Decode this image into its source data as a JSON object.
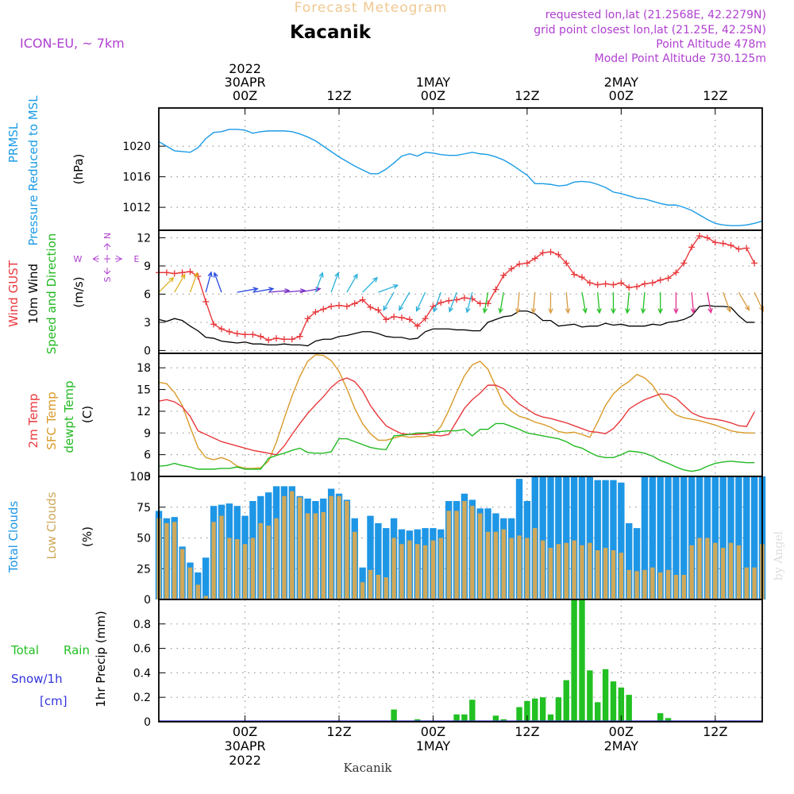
{
  "header": {
    "title": "Forecast Meteogram",
    "station": "Kacanik",
    "model": "ICON-EU, ~ 7km",
    "requested": "requested lon,lat (21.2568E, 42.2279N)",
    "gridpoint": "grid point closest lon,lat (21.25E, 42.25N)",
    "altitude": "Point Altitude 478m",
    "model_altitude": "Model Point Altitude 730.125m",
    "footer_station": "Kacanik",
    "credit": "by Angel"
  },
  "time_axis": {
    "top_labels": [
      {
        "hour": 0,
        "lines": [
          "2022",
          "30APR",
          "00Z"
        ]
      },
      {
        "hour": 12,
        "lines": [
          "12Z"
        ]
      },
      {
        "hour": 24,
        "lines": [
          "1MAY",
          "00Z"
        ]
      },
      {
        "hour": 36,
        "lines": [
          "12Z"
        ]
      },
      {
        "hour": 48,
        "lines": [
          "2MAY",
          "00Z"
        ]
      },
      {
        "hour": 60,
        "lines": [
          "12Z"
        ]
      }
    ],
    "bottom_labels": [
      {
        "hour": 0,
        "lines": [
          "00Z",
          "30APR",
          "2022"
        ]
      },
      {
        "hour": 12,
        "lines": [
          "12Z"
        ]
      },
      {
        "hour": 24,
        "lines": [
          "00Z",
          "1MAY"
        ]
      },
      {
        "hour": 36,
        "lines": [
          "12Z"
        ]
      },
      {
        "hour": 48,
        "lines": [
          "00Z",
          "2MAY"
        ]
      },
      {
        "hour": 60,
        "lines": [
          "12Z"
        ]
      }
    ],
    "range_hours": [
      -11,
      66
    ]
  },
  "panel_labels": {
    "pressure": [
      "PRMSL",
      "Pressure Reduced to MSL",
      "(hPa)"
    ],
    "wind": [
      "Wind GUST",
      "10m Wind",
      "Speed and Direction",
      "(m/s)"
    ],
    "compass": [
      "N",
      "E",
      "S",
      "W"
    ],
    "temp": [
      "2m Temp",
      "SFC Temp",
      "dewpt Temp",
      "(C)"
    ],
    "clouds": [
      "Total Clouds",
      "Low Clouds",
      "(%)"
    ],
    "precip": [
      "Total",
      "Rain",
      "Snow/1h",
      "[cm]",
      "1hr Precip (mm)"
    ]
  },
  "colors": {
    "pressure": "#1a9be6",
    "gust": "#e8383c",
    "wind": "#000000",
    "temp2m": "#e8383c",
    "sfc": "#d99a2a",
    "dewpt": "#22b922",
    "total_cloud": "#1e96e6",
    "low_cloud": "#cfa85a",
    "rain": "#22c022",
    "title": "#f0c890",
    "info": "#b040d0",
    "snow": "#3333dd"
  },
  "chart_data": [
    {
      "name": "pressure",
      "type": "line",
      "ylim": [
        1009,
        1025
      ],
      "yticks": [
        1012,
        1016,
        1020
      ],
      "x": [
        -11,
        -9,
        -7,
        -6,
        -5,
        -4,
        -3,
        -2,
        -1,
        0,
        1,
        2,
        3,
        4,
        5,
        6,
        7,
        8,
        9,
        10,
        11,
        12,
        13,
        14,
        15,
        16,
        17,
        18,
        19,
        20,
        21,
        22,
        23,
        24,
        25,
        26,
        27,
        28,
        29,
        30,
        31,
        32,
        33,
        34,
        35,
        36,
        37,
        38,
        39,
        40,
        41,
        42,
        43,
        44,
        45,
        46,
        47,
        48,
        49,
        50,
        51,
        52,
        53,
        54,
        55,
        56,
        57,
        58,
        59,
        60,
        61,
        62,
        63,
        64,
        65,
        66
      ],
      "values": [
        1020.6,
        1019.4,
        1019.2,
        1019.8,
        1021.0,
        1021.8,
        1021.9,
        1022.2,
        1022.2,
        1022.1,
        1021.7,
        1021.9,
        1022.0,
        1022.0,
        1022.0,
        1021.9,
        1021.6,
        1021.2,
        1020.7,
        1020.0,
        1019.3,
        1018.6,
        1018.0,
        1017.4,
        1016.9,
        1016.4,
        1016.4,
        1017.0,
        1017.8,
        1018.7,
        1019.0,
        1018.7,
        1019.2,
        1019.1,
        1018.9,
        1018.8,
        1018.8,
        1019.0,
        1019.2,
        1019.0,
        1018.9,
        1018.6,
        1018.2,
        1017.6,
        1016.9,
        1016.2,
        1015.1,
        1015.1,
        1015.0,
        1014.8,
        1014.9,
        1015.3,
        1015.4,
        1015.3,
        1015.0,
        1014.6,
        1014.0,
        1013.8,
        1013.5,
        1013.2,
        1013.1,
        1012.8,
        1012.5,
        1012.3,
        1012.3,
        1012.0,
        1011.6,
        1011.0,
        1010.4,
        1009.9,
        1009.7,
        1009.6,
        1009.6,
        1009.7,
        1009.9,
        1010.2
      ]
    },
    {
      "name": "wind",
      "type": "line",
      "ylim": [
        -0.3,
        12.8
      ],
      "yticks": [
        0,
        3,
        6,
        9,
        12
      ],
      "x": [
        -11,
        -10,
        -9,
        -8,
        -7,
        -6,
        -5,
        -4,
        -3,
        -2,
        -1,
        0,
        1,
        2,
        3,
        4,
        5,
        6,
        7,
        8,
        9,
        10,
        11,
        12,
        13,
        14,
        15,
        16,
        17,
        18,
        19,
        20,
        21,
        22,
        23,
        24,
        25,
        26,
        27,
        28,
        29,
        30,
        31,
        32,
        33,
        34,
        35,
        36,
        37,
        38,
        39,
        40,
        41,
        42,
        43,
        44,
        45,
        46,
        47,
        48,
        49,
        50,
        51,
        52,
        53,
        54,
        55,
        56,
        57,
        58,
        59,
        60,
        61,
        62,
        63,
        64,
        65
      ],
      "gust": [
        8.3,
        8.3,
        8.2,
        8.3,
        8.4,
        7.9,
        5.2,
        2.8,
        2.3,
        2.0,
        1.8,
        1.7,
        1.7,
        1.5,
        1.1,
        1.3,
        1.2,
        1.2,
        1.5,
        3.4,
        4.1,
        4.4,
        4.7,
        4.8,
        4.7,
        5.0,
        5.4,
        4.6,
        4.3,
        3.3,
        3.6,
        3.5,
        3.3,
        2.6,
        3.4,
        4.7,
        5.1,
        5.3,
        5.4,
        5.6,
        5.5,
        5.0,
        5.0,
        6.5,
        8.0,
        8.7,
        9.2,
        9.3,
        9.8,
        10.4,
        10.5,
        10.2,
        9.3,
        8.1,
        7.8,
        7.2,
        7.0,
        7.1,
        7.0,
        7.2,
        6.7,
        6.8,
        7.1,
        7.2,
        7.5,
        7.7,
        8.3,
        9.3,
        11.0,
        12.2,
        12.0,
        11.5,
        11.4,
        11.2,
        10.8,
        10.9,
        9.3
      ],
      "wind": [
        3.3,
        3.1,
        3.4,
        3.2,
        2.6,
        2.1,
        1.4,
        1.3,
        1.0,
        0.9,
        0.8,
        0.9,
        0.7,
        0.7,
        0.6,
        0.6,
        0.7,
        0.6,
        0.6,
        0.5,
        1.0,
        1.2,
        1.2,
        1.5,
        1.6,
        1.8,
        2.0,
        2.0,
        1.8,
        1.5,
        1.4,
        1.4,
        1.2,
        1.3,
        2.0,
        2.3,
        2.3,
        2.3,
        2.2,
        2.2,
        2.1,
        2.1,
        3.0,
        3.3,
        3.6,
        3.7,
        4.2,
        4.2,
        3.9,
        3.2,
        3.2,
        2.6,
        2.7,
        2.8,
        2.5,
        2.6,
        2.6,
        2.9,
        2.7,
        2.8,
        2.6,
        2.6,
        2.6,
        2.8,
        2.7,
        3.0,
        3.1,
        3.3,
        3.7,
        4.7,
        4.8,
        4.7,
        4.7,
        4.6,
        3.7,
        3.0,
        3.0
      ],
      "dir_x": [
        -11,
        -9,
        -7,
        -5,
        -3,
        -1,
        1,
        3,
        5,
        7,
        9,
        11,
        13,
        15,
        17,
        19,
        21,
        23,
        25,
        27,
        29,
        31,
        33,
        35,
        37,
        39,
        41,
        43,
        45,
        47,
        49,
        51,
        53,
        55,
        57,
        59,
        61,
        63,
        65
      ],
      "dir_deg": [
        225,
        210,
        200,
        195,
        160,
        260,
        260,
        265,
        265,
        260,
        200,
        200,
        210,
        225,
        250,
        30,
        30,
        25,
        20,
        20,
        15,
        10,
        10,
        5,
        5,
        0,
        355,
        350,
        355,
        0,
        5,
        5,
        0,
        0,
        355,
        350,
        340,
        330,
        335
      ]
    },
    {
      "name": "temperature",
      "type": "line",
      "ylim": [
        3,
        20
      ],
      "yticks": [
        3,
        6,
        9,
        12,
        15,
        18
      ],
      "x": [
        -11,
        -10,
        -9,
        -8,
        -7,
        -6,
        -5,
        -4,
        -3,
        -2,
        -1,
        0,
        1,
        2,
        3,
        4,
        5,
        6,
        7,
        8,
        9,
        10,
        11,
        12,
        13,
        14,
        15,
        16,
        17,
        18,
        19,
        20,
        21,
        22,
        23,
        24,
        25,
        26,
        27,
        28,
        29,
        30,
        31,
        32,
        33,
        34,
        35,
        36,
        37,
        38,
        39,
        40,
        41,
        42,
        43,
        44,
        45,
        46,
        47,
        48,
        49,
        50,
        51,
        52,
        53,
        54,
        55,
        56,
        57,
        58,
        59,
        60,
        61,
        62,
        63,
        64,
        65
      ],
      "temp2m": [
        13.4,
        13.6,
        13.3,
        12.6,
        11.3,
        9.3,
        8.8,
        8.3,
        7.8,
        7.5,
        7.2,
        6.9,
        6.6,
        6.4,
        6.2,
        6.0,
        7.2,
        8.8,
        10.3,
        11.7,
        12.9,
        14.0,
        15.3,
        16.2,
        16.6,
        16.1,
        14.8,
        12.8,
        11.3,
        10.0,
        9.4,
        8.9,
        8.8,
        8.8,
        8.9,
        8.7,
        8.6,
        8.8,
        10.6,
        12.4,
        13.6,
        14.5,
        15.6,
        15.6,
        15.1,
        14.0,
        13.0,
        12.3,
        11.6,
        11.2,
        11.0,
        10.7,
        10.4,
        10.0,
        9.6,
        9.2,
        9.1,
        8.9,
        9.6,
        10.8,
        12.3,
        13.0,
        13.6,
        14.0,
        14.4,
        14.3,
        13.8,
        12.8,
        11.8,
        11.3,
        11.0,
        10.9,
        10.7,
        10.4,
        10.0,
        9.9,
        11.9
      ],
      "sfc": [
        16.0,
        15.8,
        14.6,
        12.8,
        9.8,
        7.0,
        5.6,
        5.3,
        5.6,
        5.2,
        4.4,
        4.1,
        4.1,
        4.2,
        5.1,
        7.7,
        11.0,
        14.1,
        16.8,
        18.9,
        19.8,
        19.7,
        19.0,
        17.5,
        15.1,
        12.4,
        10.3,
        8.9,
        8.0,
        8.0,
        8.3,
        8.6,
        8.4,
        8.5,
        8.5,
        8.7,
        9.9,
        12.1,
        14.6,
        16.9,
        18.4,
        18.9,
        17.8,
        15.4,
        13.0,
        12.0,
        11.3,
        11.0,
        10.5,
        10.2,
        9.8,
        9.2,
        9.0,
        9.1,
        8.8,
        8.4,
        10.5,
        12.8,
        14.4,
        15.4,
        16.1,
        17.1,
        16.6,
        15.6,
        13.9,
        12.5,
        11.5,
        11.1,
        10.9,
        10.7,
        10.4,
        10.1,
        9.7,
        9.3,
        9.1,
        9.0,
        9.0
      ],
      "dewpt": [
        4.4,
        4.5,
        4.8,
        4.5,
        4.3,
        4.0,
        4.0,
        4.0,
        4.1,
        4.1,
        4.3,
        4.0,
        4.0,
        4.0,
        5.5,
        5.9,
        6.2,
        6.6,
        6.9,
        6.3,
        6.2,
        6.2,
        6.4,
        8.2,
        8.2,
        7.8,
        7.4,
        7.0,
        6.8,
        6.7,
        8.6,
        8.7,
        8.8,
        9.0,
        9.0,
        9.1,
        9.2,
        9.3,
        9.3,
        9.5,
        8.6,
        9.5,
        9.5,
        10.3,
        10.3,
        9.9,
        9.5,
        9.0,
        8.8,
        8.6,
        8.4,
        8.2,
        7.8,
        7.2,
        6.9,
        6.3,
        5.8,
        5.6,
        5.6,
        6.0,
        6.5,
        6.4,
        6.2,
        5.8,
        5.2,
        4.8,
        4.3,
        3.9,
        3.7,
        3.9,
        4.4,
        4.8,
        5.0,
        5.1,
        5.0,
        4.9,
        4.9
      ]
    },
    {
      "name": "clouds",
      "type": "bar",
      "ylim": [
        0,
        100
      ],
      "yticks": [
        0,
        25,
        50,
        75,
        100
      ],
      "x": [
        -11,
        -10,
        -9,
        -8,
        -7,
        -6,
        -5,
        -4,
        -3,
        -2,
        -1,
        0,
        1,
        2,
        3,
        4,
        5,
        6,
        7,
        8,
        9,
        10,
        11,
        12,
        13,
        14,
        15,
        16,
        17,
        18,
        19,
        20,
        21,
        22,
        23,
        24,
        25,
        26,
        27,
        28,
        29,
        30,
        31,
        32,
        33,
        34,
        35,
        36,
        37,
        38,
        39,
        40,
        41,
        42,
        43,
        44,
        45,
        46,
        47,
        48,
        49,
        50,
        51,
        52,
        53,
        54,
        55,
        56,
        57,
        58,
        59,
        60,
        61,
        62,
        63,
        64,
        65,
        66
      ],
      "total": [
        72,
        66,
        67,
        43,
        30,
        22,
        34,
        76,
        77,
        78,
        76,
        68,
        80,
        84,
        87,
        92,
        92,
        92,
        84,
        82,
        80,
        82,
        90,
        86,
        81,
        66,
        26,
        68,
        62,
        58,
        66,
        57,
        56,
        57,
        58,
        58,
        57,
        80,
        80,
        86,
        81,
        74,
        74,
        70,
        66,
        66,
        98,
        80,
        100,
        100,
        100,
        100,
        100,
        100,
        100,
        100,
        97,
        97,
        97,
        95,
        62,
        58,
        100,
        100,
        100,
        100,
        100,
        100,
        100,
        100,
        100,
        100,
        100,
        100,
        100,
        100,
        100,
        100
      ],
      "low": [
        66,
        62,
        63,
        41,
        26,
        12,
        3,
        63,
        68,
        50,
        49,
        45,
        50,
        62,
        60,
        66,
        84,
        88,
        83,
        70,
        70,
        71,
        84,
        84,
        80,
        55,
        14,
        24,
        20,
        18,
        50,
        45,
        48,
        45,
        44,
        48,
        50,
        72,
        72,
        80,
        76,
        70,
        55,
        55,
        57,
        50,
        52,
        50,
        58,
        48,
        42,
        45,
        46,
        48,
        44,
        46,
        40,
        42,
        40,
        38,
        24,
        23,
        24,
        26,
        22,
        24,
        20,
        20,
        44,
        50,
        50,
        46,
        42,
        46,
        44,
        26,
        26,
        45
      ]
    },
    {
      "name": "precipitation",
      "type": "bar",
      "ylim": [
        0,
        1.0
      ],
      "yticks": [
        0,
        0.2,
        0.4,
        0.6,
        0.8
      ],
      "x": [
        -11,
        -10,
        -9,
        -8,
        -7,
        -6,
        -5,
        -4,
        -3,
        -2,
        -1,
        0,
        1,
        2,
        3,
        4,
        5,
        6,
        7,
        8,
        9,
        10,
        11,
        12,
        13,
        14,
        15,
        16,
        17,
        18,
        19,
        20,
        21,
        22,
        23,
        24,
        25,
        26,
        27,
        28,
        29,
        30,
        31,
        32,
        33,
        34,
        35,
        36,
        37,
        38,
        39,
        40,
        41,
        42,
        43,
        44,
        45,
        46,
        47,
        48,
        49,
        50,
        51,
        52,
        53,
        54,
        55,
        56,
        57,
        58,
        59,
        60,
        61,
        62,
        63,
        64,
        65
      ],
      "rain": [
        0,
        0,
        0,
        0,
        0,
        0,
        0,
        0,
        0,
        0,
        0,
        0,
        0,
        0,
        0,
        0,
        0,
        0,
        0,
        0,
        0,
        0,
        0,
        0,
        0,
        0,
        0,
        0,
        0,
        0,
        0.1,
        0,
        0,
        0.02,
        0.01,
        0,
        0,
        0,
        0.06,
        0.06,
        0.18,
        0.01,
        0,
        0.05,
        0.02,
        0,
        0.12,
        0.17,
        0.19,
        0.2,
        0.06,
        0.2,
        0.34,
        1.0,
        1.0,
        0.42,
        0.16,
        0.43,
        0.33,
        0.28,
        0.22,
        0,
        0,
        0,
        0.07,
        0.03,
        0,
        0,
        0,
        0,
        0,
        0,
        0,
        0.01,
        0,
        0,
        0
      ]
    }
  ]
}
